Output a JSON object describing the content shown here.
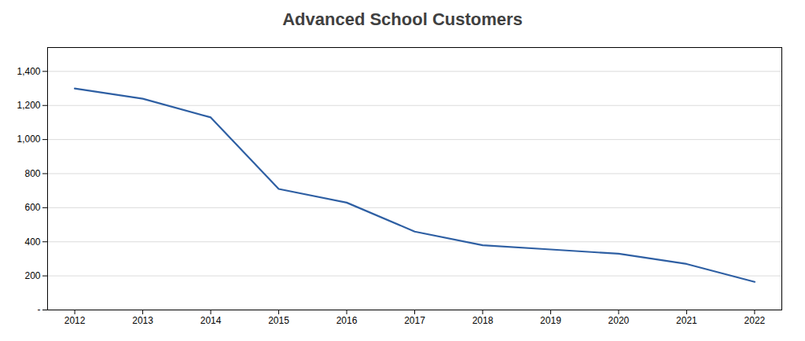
{
  "chart_data": {
    "type": "line",
    "title": "Advanced School Customers",
    "x": [
      2012,
      2013,
      2014,
      2015,
      2016,
      2017,
      2018,
      2019,
      2020,
      2021,
      2022
    ],
    "values": [
      1300,
      1240,
      1130,
      710,
      630,
      460,
      380,
      355,
      330,
      270,
      165
    ],
    "color": "#2E5FA3",
    "xlim": [
      2011.6,
      2022.4
    ],
    "xticks": [
      2012,
      2013,
      2014,
      2015,
      2016,
      2017,
      2018,
      2019,
      2020,
      2021,
      2022
    ],
    "ylim": [
      0,
      1540
    ],
    "yticks": [
      {
        "value": 0,
        "label": "-"
      },
      200,
      400,
      600,
      800,
      {
        "value": 1000,
        "label": "1,000"
      },
      {
        "value": 1200,
        "label": "1,200"
      },
      {
        "value": 1400,
        "label": "1,400"
      }
    ],
    "grid": true
  }
}
